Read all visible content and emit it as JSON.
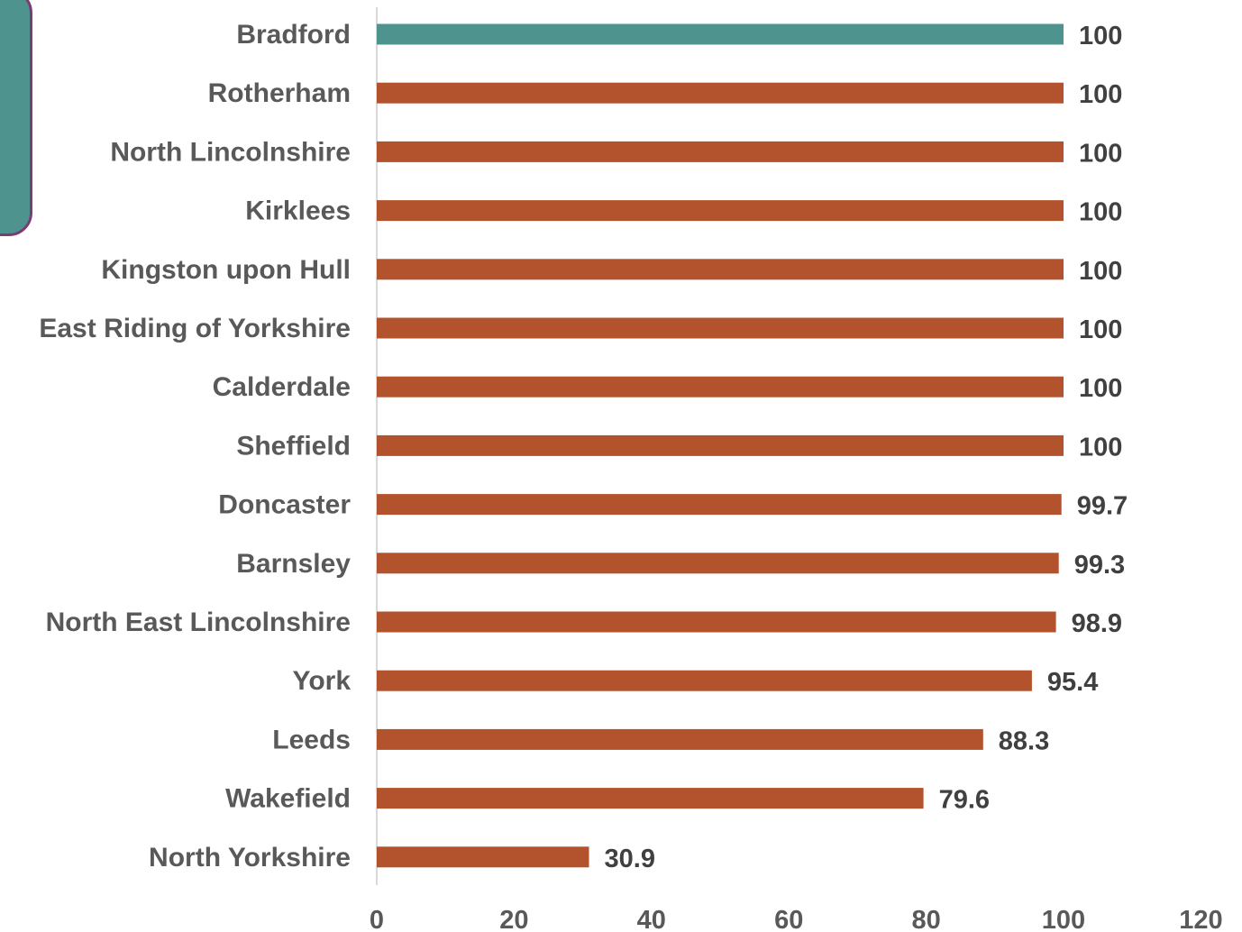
{
  "chart_data": {
    "type": "bar",
    "orientation": "horizontal",
    "categories": [
      "Bradford",
      "Rotherham",
      "North Lincolnshire",
      "Kirklees",
      "Kingston upon Hull",
      "East Riding of Yorkshire",
      "Calderdale",
      "Sheffield",
      "Doncaster",
      "Barnsley",
      "North East Lincolnshire",
      "York",
      "Leeds",
      "Wakefield",
      "North Yorkshire"
    ],
    "values": [
      100,
      100,
      100,
      100,
      100,
      100,
      100,
      100,
      99.7,
      99.3,
      98.9,
      95.4,
      88.3,
      79.6,
      30.9
    ],
    "value_labels": [
      "100",
      "100",
      "100",
      "100",
      "100",
      "100",
      "100",
      "100",
      "99.7",
      "99.3",
      "98.9",
      "95.4",
      "88.3",
      "79.6",
      "30.9"
    ],
    "highlight_index": 0,
    "xlim": [
      0,
      120
    ],
    "x_ticks": [
      0,
      20,
      40,
      60,
      80,
      100,
      120
    ],
    "x_tick_labels": [
      "0",
      "20",
      "40",
      "60",
      "80",
      "100",
      "120"
    ],
    "grid": false,
    "colors": {
      "highlight": "#4f938f",
      "bar": "#b2532e",
      "axis": "#d9d9d9",
      "side_tab_fill": "#4f938f",
      "side_tab_border": "#7b3b74"
    }
  }
}
